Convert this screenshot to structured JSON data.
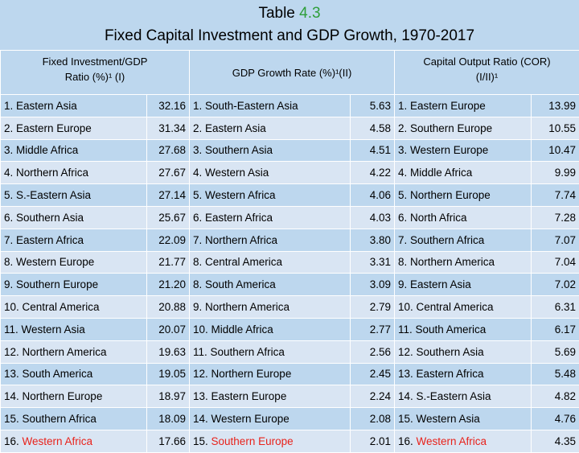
{
  "title": {
    "line1_prefix": "Table ",
    "line1_number": "4.3",
    "line2": "Fixed Capital Investment and GDP Growth, 1970-2017"
  },
  "headers": {
    "col1_line1": "Fixed Investment/GDP",
    "col1_line2": "Ratio (%)¹ (I)",
    "col2": "GDP Growth Rate (%)¹(II)",
    "col3_line1": "Capital Output Ratio (COR)",
    "col3_line2": "(I/II)¹"
  },
  "rows": [
    {
      "r1": "1. Eastern Asia",
      "v1": "32.16",
      "r2": "1. South-Eastern Asia",
      "v2": "5.63",
      "r3": "1. Eastern Europe",
      "v3": "13.99"
    },
    {
      "r1": "2. Eastern Europe",
      "v1": "31.34",
      "r2": "2. Eastern Asia",
      "v2": "4.58",
      "r3": "2. Southern Europe",
      "v3": "10.55"
    },
    {
      "r1": "3. Middle Africa",
      "v1": "27.68",
      "r2": "3. Southern Asia",
      "v2": "4.51",
      "r3": "3. Western Europe",
      "v3": "10.47"
    },
    {
      "r1": "4. Northern Africa",
      "v1": "27.67",
      "r2": "4. Western Asia",
      "v2": "4.22",
      "r3": "4. Middle Africa",
      "v3": "9.99"
    },
    {
      "r1": "5. S.-Eastern Asia",
      "v1": "27.14",
      "r2": "5. Western Africa",
      "v2": "4.06",
      "r3": "5. Northern Europe",
      "v3": "7.74"
    },
    {
      "r1": "6. Southern Asia",
      "v1": "25.67",
      "r2": "6. Eastern Africa",
      "v2": "4.03",
      "r3": "6. North Africa",
      "v3": "7.28"
    },
    {
      "r1": "7. Eastern Africa",
      "v1": "22.09",
      "r2": "7. Northern Africa",
      "v2": "3.80",
      "r3": "7. Southern Africa",
      "v3": "7.07"
    },
    {
      "r1": "8. Western Europe",
      "v1": "21.77",
      "r2": "8. Central America",
      "v2": "3.31",
      "r3": "8. Northern America",
      "v3": "7.04"
    },
    {
      "r1": "9. Southern Europe",
      "v1": "21.20",
      "r2": "8. South America",
      "v2": "3.09",
      "r3": "9. Eastern Asia",
      "v3": "7.02"
    },
    {
      "r1": "10. Central America",
      "v1": "20.88",
      "r2": "9. Northern America",
      "v2": "2.79",
      "r3": "10. Central America",
      "v3": "6.31"
    },
    {
      "r1": "11. Western Asia",
      "v1": "20.07",
      "r2": "10. Middle Africa",
      "v2": "2.77",
      "r3": "11. South America",
      "v3": "6.17"
    },
    {
      "r1": "12. Northern America",
      "v1": "19.63",
      "r2": "11. Southern Africa",
      "v2": "2.56",
      "r3": "12. Southern Asia",
      "v3": "5.69"
    },
    {
      "r1": "13. South America",
      "v1": "19.05",
      "r2": "12. Northern Europe",
      "v2": "2.45",
      "r3": "13. Eastern Africa",
      "v3": "5.48"
    },
    {
      "r1": "14. Northern Europe",
      "v1": "18.97",
      "r2": "13. Eastern Europe",
      "v2": "2.24",
      "r3": "14. S.-Eastern Asia",
      "v3": "4.82"
    },
    {
      "r1": "15. Southern Africa",
      "v1": "18.09",
      "r2": "14. Western Europe",
      "v2": "2.08",
      "r3": "15. Western Asia",
      "v3": "4.76"
    },
    {
      "r1_num": "16. ",
      "r1_name": "Western Africa",
      "v1": "17.66",
      "r2_num": "15. ",
      "r2_name": "Southern Europe",
      "v2": "2.01",
      "r3_num": "16. ",
      "r3_name": "Western Africa",
      "v3": "4.35"
    }
  ],
  "highlight_color": "#e8221b",
  "number_color": "#2e9e3a"
}
